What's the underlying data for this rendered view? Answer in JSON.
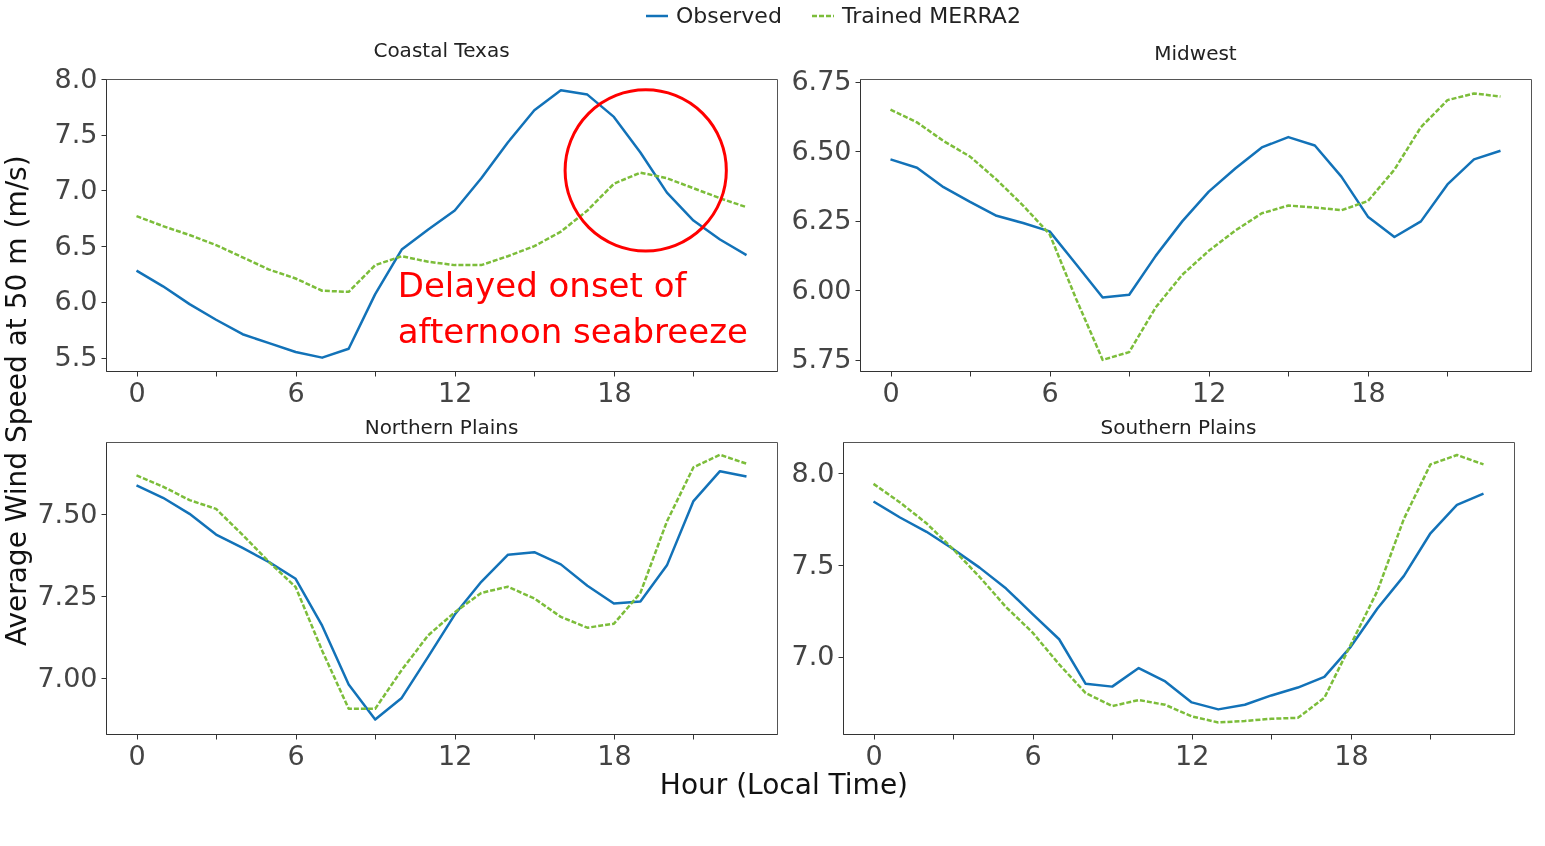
{
  "chart_data": [
    {
      "type": "line",
      "title": "Coastal Texas",
      "ylabel": "Average Wind Speed at 50 m (m/s)",
      "legend": "top",
      "grid": false,
      "marker": "none",
      "x": [
        0,
        1,
        2,
        3,
        4,
        5,
        6,
        7,
        8,
        9,
        10,
        11,
        12,
        13,
        14,
        15,
        16,
        17,
        18,
        19,
        20,
        21,
        22,
        23
      ],
      "xlim": [
        -1.15,
        24.15
      ],
      "xticks": [
        0,
        {
          "value": 3,
          "label": null
        },
        6,
        {
          "value": 9,
          "label": null
        },
        12,
        {
          "value": 15,
          "label": null
        },
        18,
        {
          "value": 21,
          "label": null
        }
      ],
      "ylim": [
        5.38,
        8.0
      ],
      "yticks": [
        {
          "value": 5.5,
          "label": "5.5"
        },
        {
          "value": 6.0,
          "label": "6.0"
        },
        {
          "value": 6.5,
          "label": "6.5"
        },
        {
          "value": 7.0,
          "label": "7.0"
        },
        {
          "value": 7.5,
          "label": "7.5"
        },
        {
          "value": 8.0,
          "label": "8.0"
        }
      ],
      "annotations": [
        {
          "text": "Delayed onset of afternoon seabreeze",
          "x": 19.2,
          "y": 7.18
        }
      ],
      "series": [
        {
          "name": "Observed",
          "color": "#1272b8",
          "line_style": "solid",
          "values": [
            6.28,
            6.14,
            5.98,
            5.84,
            5.71,
            5.63,
            5.55,
            5.5,
            5.58,
            6.07,
            6.47,
            6.65,
            6.82,
            7.11,
            7.43,
            7.72,
            7.9,
            7.86,
            7.66,
            7.34,
            6.98,
            6.73,
            6.56,
            6.42
          ]
        },
        {
          "name": "Trained MERRA2",
          "color": "#7cbd3a",
          "line_style": "dashed",
          "values": [
            6.77,
            6.68,
            6.6,
            6.51,
            6.4,
            6.29,
            6.21,
            6.1,
            6.09,
            6.33,
            6.41,
            6.36,
            6.33,
            6.33,
            6.41,
            6.5,
            6.63,
            6.82,
            7.06,
            7.16,
            7.11,
            7.02,
            6.93,
            6.85
          ]
        }
      ]
    },
    {
      "type": "line",
      "title": "Midwest",
      "grid": false,
      "marker": "none",
      "x": [
        0,
        1,
        2,
        3,
        4,
        5,
        6,
        7,
        8,
        9,
        10,
        11,
        12,
        13,
        14,
        15,
        16,
        17,
        18,
        19,
        20,
        21,
        22,
        23
      ],
      "xlim": [
        -1.15,
        24.15
      ],
      "xticks": [
        0,
        {
          "value": 3,
          "label": null
        },
        6,
        {
          "value": 9,
          "label": null
        },
        12,
        {
          "value": 15,
          "label": null
        },
        18,
        {
          "value": 21,
          "label": null
        }
      ],
      "ylim": [
        5.71,
        6.76
      ],
      "yticks": [
        5.75,
        {
          "value": 6.0,
          "label": "6.00"
        },
        6.25,
        {
          "value": 6.5,
          "label": "6.50"
        },
        6.75
      ],
      "series": [
        {
          "color": "#1272b8",
          "line_style": "solid",
          "values": [
            6.471,
            6.441,
            6.371,
            6.318,
            6.268,
            6.242,
            6.212,
            6.094,
            5.974,
            5.984,
            6.124,
            6.248,
            6.355,
            6.438,
            6.514,
            6.551,
            6.521,
            6.409,
            6.265,
            6.192,
            6.248,
            6.381,
            6.471,
            6.502
          ]
        },
        {
          "color": "#7cbd3a",
          "line_style": "dashed",
          "values": [
            6.65,
            6.604,
            6.537,
            6.481,
            6.398,
            6.305,
            6.202,
            5.969,
            5.75,
            5.778,
            5.939,
            6.056,
            6.142,
            6.215,
            6.277,
            6.305,
            6.298,
            6.288,
            6.321,
            6.434,
            6.587,
            6.684,
            6.708,
            6.697
          ]
        }
      ]
    },
    {
      "type": "line",
      "title": "Northern Plains",
      "xlabel": "Hour (Local Time)",
      "grid": false,
      "marker": "none",
      "x": [
        0,
        1,
        2,
        3,
        4,
        5,
        6,
        7,
        8,
        9,
        10,
        11,
        12,
        13,
        14,
        15,
        16,
        17,
        18,
        19,
        20,
        21,
        22,
        23
      ],
      "xlim": [
        -1.15,
        24.15
      ],
      "xticks": [
        0,
        {
          "value": 3,
          "label": null
        },
        6,
        {
          "value": 9,
          "label": null
        },
        12,
        {
          "value": 15,
          "label": null
        },
        18,
        {
          "value": 21,
          "label": null
        }
      ],
      "ylim": [
        6.83,
        7.72
      ],
      "yticks": [
        {
          "value": 7.0,
          "label": "7.00"
        },
        7.25,
        {
          "value": 7.5,
          "label": "7.50"
        }
      ],
      "series": [
        {
          "color": "#1272b8",
          "line_style": "solid",
          "values": [
            7.588,
            7.55,
            7.501,
            7.438,
            7.397,
            7.354,
            7.303,
            7.16,
            6.981,
            6.874,
            6.94,
            7.066,
            7.194,
            7.294,
            7.376,
            7.384,
            7.347,
            7.282,
            7.228,
            7.234,
            7.344,
            7.54,
            7.631,
            7.615
          ]
        },
        {
          "color": "#7cbd3a",
          "line_style": "dashed",
          "values": [
            7.618,
            7.584,
            7.543,
            7.516,
            7.437,
            7.354,
            7.278,
            7.084,
            6.907,
            6.907,
            7.025,
            7.131,
            7.201,
            7.26,
            7.279,
            7.243,
            7.187,
            7.154,
            7.166,
            7.26,
            7.478,
            7.643,
            7.681,
            7.654
          ]
        }
      ]
    },
    {
      "type": "line",
      "title": "Southern Plains",
      "grid": false,
      "marker": "none",
      "x": [
        0,
        1,
        2,
        3,
        4,
        5,
        6,
        7,
        8,
        9,
        10,
        11,
        12,
        13,
        14,
        15,
        16,
        17,
        18,
        19,
        20,
        21,
        22,
        23
      ],
      "xlim": [
        -1.15,
        24.15
      ],
      "xticks": [
        0,
        {
          "value": 3,
          "label": null
        },
        6,
        {
          "value": 9,
          "label": null
        },
        12,
        {
          "value": 15,
          "label": null
        },
        18,
        {
          "value": 21,
          "label": null
        }
      ],
      "ylim": [
        6.58,
        8.17
      ],
      "yticks": [
        {
          "value": 7.0,
          "label": "7.0"
        },
        {
          "value": 7.5,
          "label": "7.5"
        },
        {
          "value": 8.0,
          "label": "8.0"
        }
      ],
      "series": [
        {
          "color": "#1272b8",
          "line_style": "solid",
          "values": [
            7.846,
            7.759,
            7.681,
            7.587,
            7.486,
            7.372,
            7.233,
            7.096,
            6.853,
            6.838,
            6.939,
            6.866,
            6.752,
            6.714,
            6.739,
            6.79,
            6.833,
            6.891,
            7.056,
            7.263,
            7.441,
            7.673,
            7.828,
            7.889
          ]
        },
        {
          "color": "#7cbd3a",
          "line_style": "dashed",
          "values": [
            7.942,
            7.841,
            7.727,
            7.587,
            7.435,
            7.271,
            7.132,
            6.959,
            6.803,
            6.732,
            6.765,
            6.739,
            6.676,
            6.643,
            6.651,
            6.663,
            6.668,
            6.777,
            7.068,
            7.359,
            7.752,
            8.048,
            8.099,
            8.048
          ]
        }
      ]
    }
  ]
}
